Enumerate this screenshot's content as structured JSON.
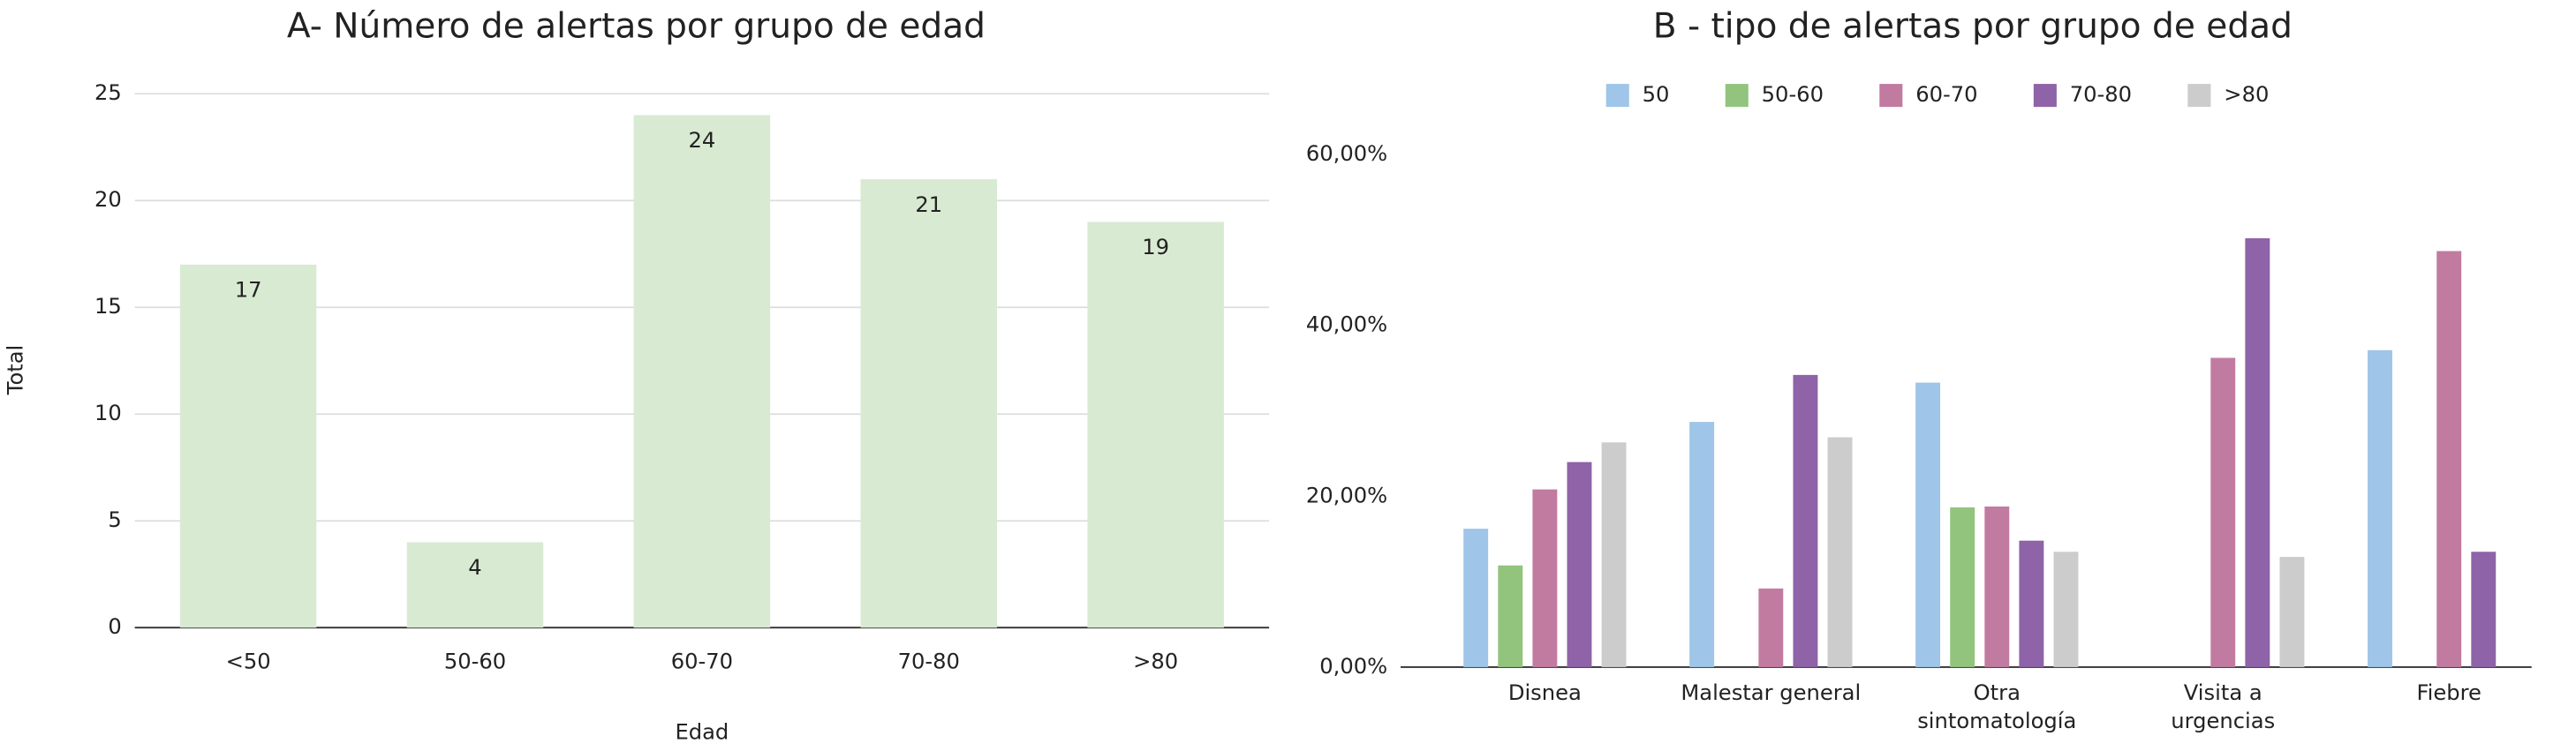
{
  "chart_data": [
    {
      "type": "bar",
      "title": "A- Número de alertas por grupo de edad",
      "x_label": "Edad",
      "y_label": "Total",
      "categories": [
        "<50",
        "50-60",
        "60-70",
        "70-80",
        ">80"
      ],
      "values": [
        17,
        4,
        24,
        21,
        19
      ],
      "color": "#d9ead3",
      "ylim": [
        0,
        25
      ],
      "yticks": [
        0,
        5,
        10,
        15,
        20,
        25
      ],
      "grid": true,
      "data_labels": true
    },
    {
      "type": "grouped_bar",
      "title": "B - tipo de alertas por grupo de edad",
      "legend": "top",
      "categories": [
        "Disnea",
        "Malestar general",
        "Otra sintomatología",
        "Visita a urgencias",
        "Fiebre"
      ],
      "series": [
        {
          "name": "50",
          "color": "#9fc5e8",
          "values": [
            16.2,
            28.7,
            33.3,
            0,
            37.1
          ]
        },
        {
          "name": "50-60",
          "color": "#93c47d",
          "values": [
            11.9,
            0,
            18.7,
            0,
            0
          ]
        },
        {
          "name": "60-70",
          "color": "#c27ba0",
          "values": [
            20.8,
            9.2,
            18.8,
            36.2,
            48.7
          ]
        },
        {
          "name": "70-80",
          "color": "#8e63a8",
          "values": [
            24.0,
            34.2,
            14.8,
            50.2,
            13.5
          ]
        },
        {
          "name": ">80",
          "color": "#cccccc",
          "values": [
            26.3,
            26.9,
            13.5,
            12.9,
            0
          ]
        }
      ],
      "ylim": [
        0,
        60
      ],
      "yticks": [
        {
          "value": 0,
          "label": "0,00%"
        },
        {
          "value": 20,
          "label": "20,00%"
        },
        {
          "value": 40,
          "label": "40,00%"
        },
        {
          "value": 60,
          "label": "60,00%"
        }
      ],
      "grid": false
    }
  ]
}
